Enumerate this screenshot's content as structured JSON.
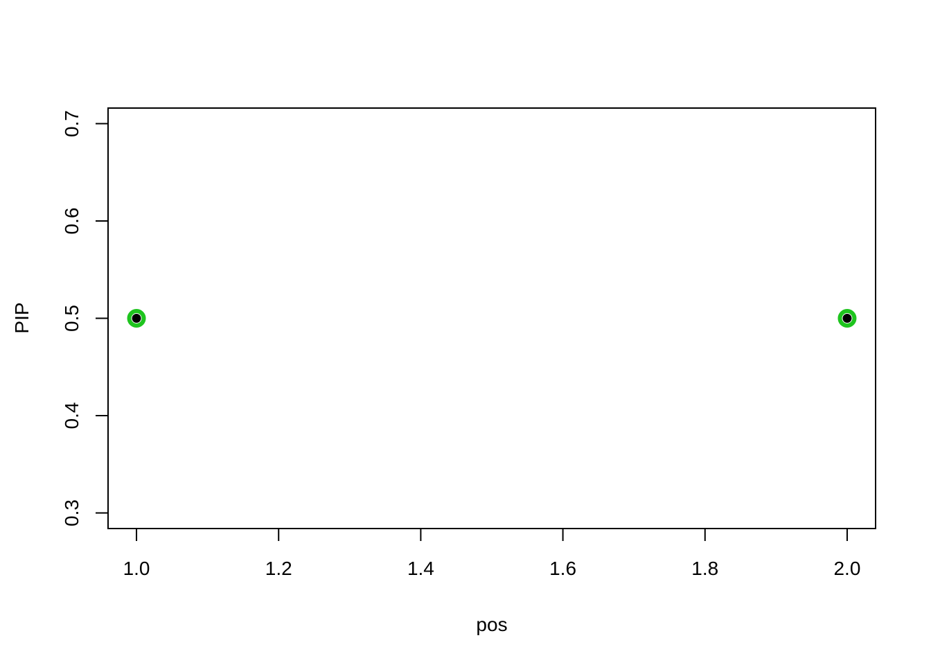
{
  "chart_data": {
    "type": "scatter",
    "title": "",
    "xlabel": "pos",
    "ylabel": "PIP",
    "xlim": [
      0.96,
      2.04
    ],
    "ylim": [
      0.284,
      0.716
    ],
    "grid": false,
    "legend": null,
    "background_color": "#ffffff",
    "axis_color": "#000000",
    "x_ticks": [
      {
        "value": 1.0,
        "label": "1.0"
      },
      {
        "value": 1.2,
        "label": "1.2"
      },
      {
        "value": 1.4,
        "label": "1.4"
      },
      {
        "value": 1.6,
        "label": "1.6"
      },
      {
        "value": 1.8,
        "label": "1.8"
      },
      {
        "value": 2.0,
        "label": "2.0"
      }
    ],
    "y_ticks": [
      {
        "value": 0.3,
        "label": "0.3"
      },
      {
        "value": 0.4,
        "label": "0.4"
      },
      {
        "value": 0.5,
        "label": "0.5"
      },
      {
        "value": 0.6,
        "label": "0.6"
      },
      {
        "value": 0.7,
        "label": "0.7"
      }
    ],
    "points": [
      {
        "x": 1.0,
        "y": 0.5
      },
      {
        "x": 2.0,
        "y": 0.5
      }
    ],
    "marker": {
      "outer_style": "open-circle",
      "outer_color": "#1ec41e",
      "inner_style": "filled-dot",
      "inner_color": "#000000"
    }
  }
}
